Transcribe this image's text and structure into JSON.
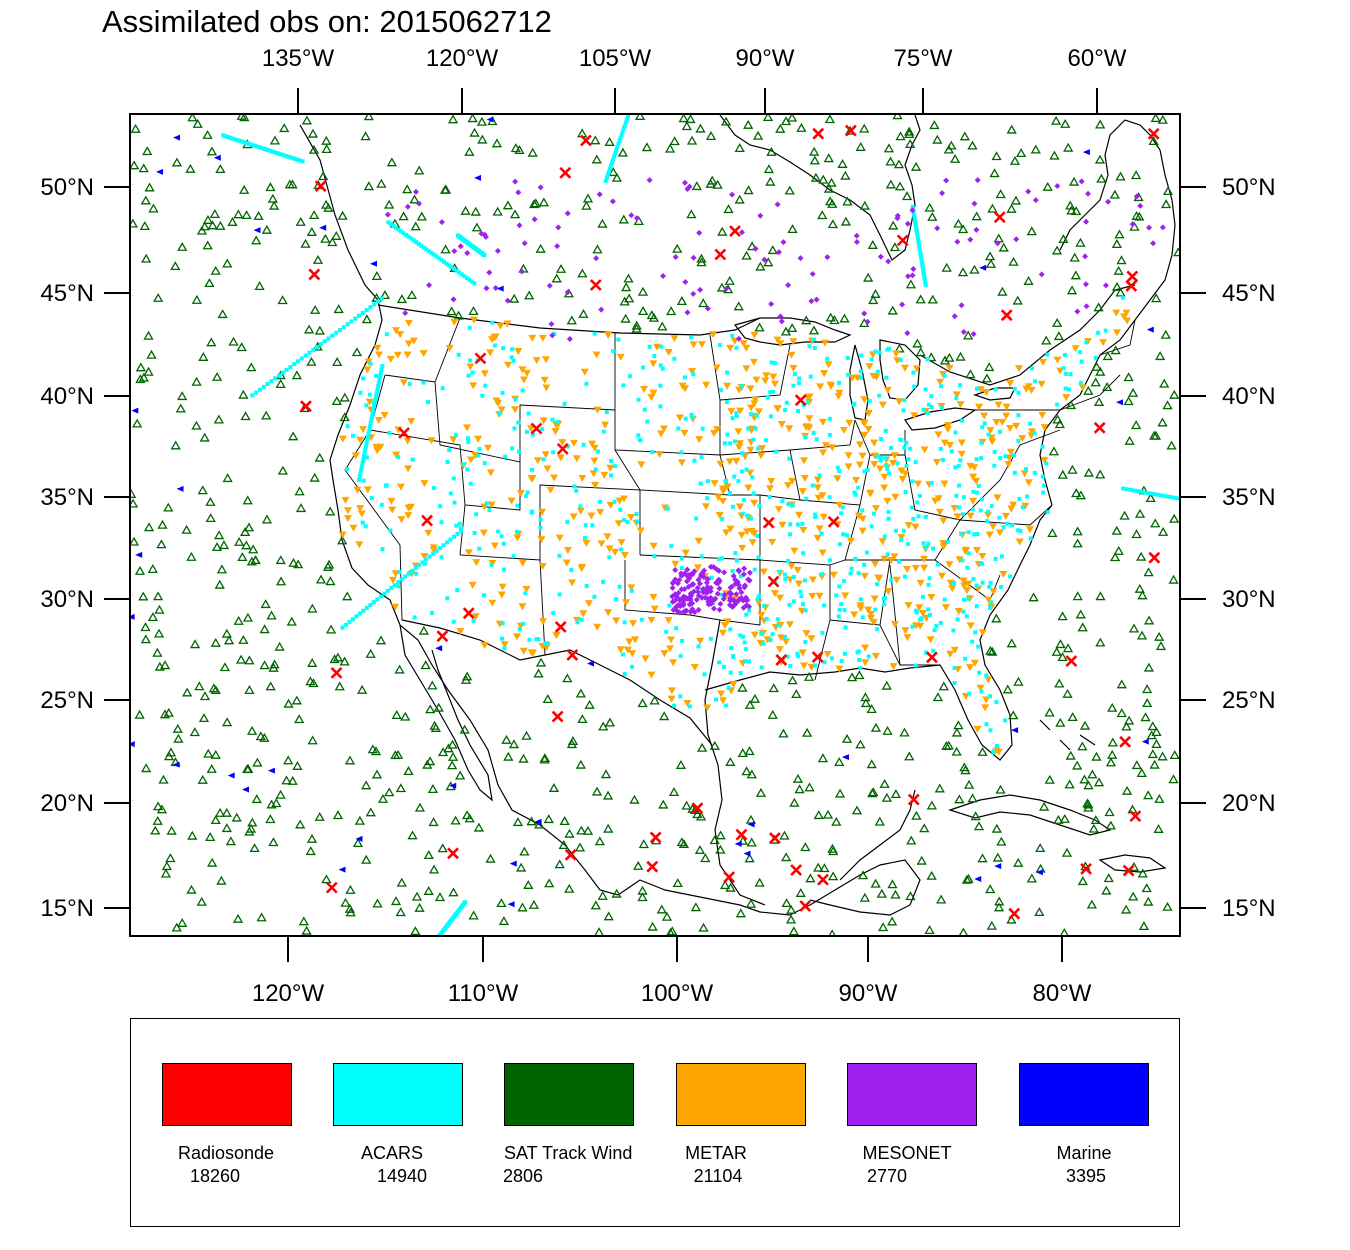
{
  "title": "Assimilated obs on: 2015062712",
  "axes": {
    "top_lon_labels": [
      "135°W",
      "120°W",
      "105°W",
      "90°W",
      "75°W",
      "60°W"
    ],
    "bottom_lon_labels": [
      "120°W",
      "110°W",
      "100°W",
      "90°W",
      "80°W"
    ],
    "lat_labels": [
      "50°N",
      "45°N",
      "40°N",
      "35°N",
      "30°N",
      "25°N",
      "20°N",
      "15°N"
    ]
  },
  "legend": [
    {
      "name": "Radiosonde",
      "count": "18260",
      "color": "#ff0000",
      "marker": "x-cross"
    },
    {
      "name": "ACARS",
      "count": "14940",
      "color": "#00ffff",
      "marker": "square-dot"
    },
    {
      "name": "SAT Track Wind",
      "count": "2806",
      "color": "#006400",
      "marker": "hollow-triangle"
    },
    {
      "name": "METAR",
      "count": "21104",
      "color": "#ffa500",
      "marker": "down-triangle"
    },
    {
      "name": "MESONET",
      "count": "2770",
      "color": "#a020f0",
      "marker": "diamond"
    },
    {
      "name": "Marine",
      "count": "3395",
      "color": "#0000ff",
      "marker": "left-triangle"
    }
  ]
}
